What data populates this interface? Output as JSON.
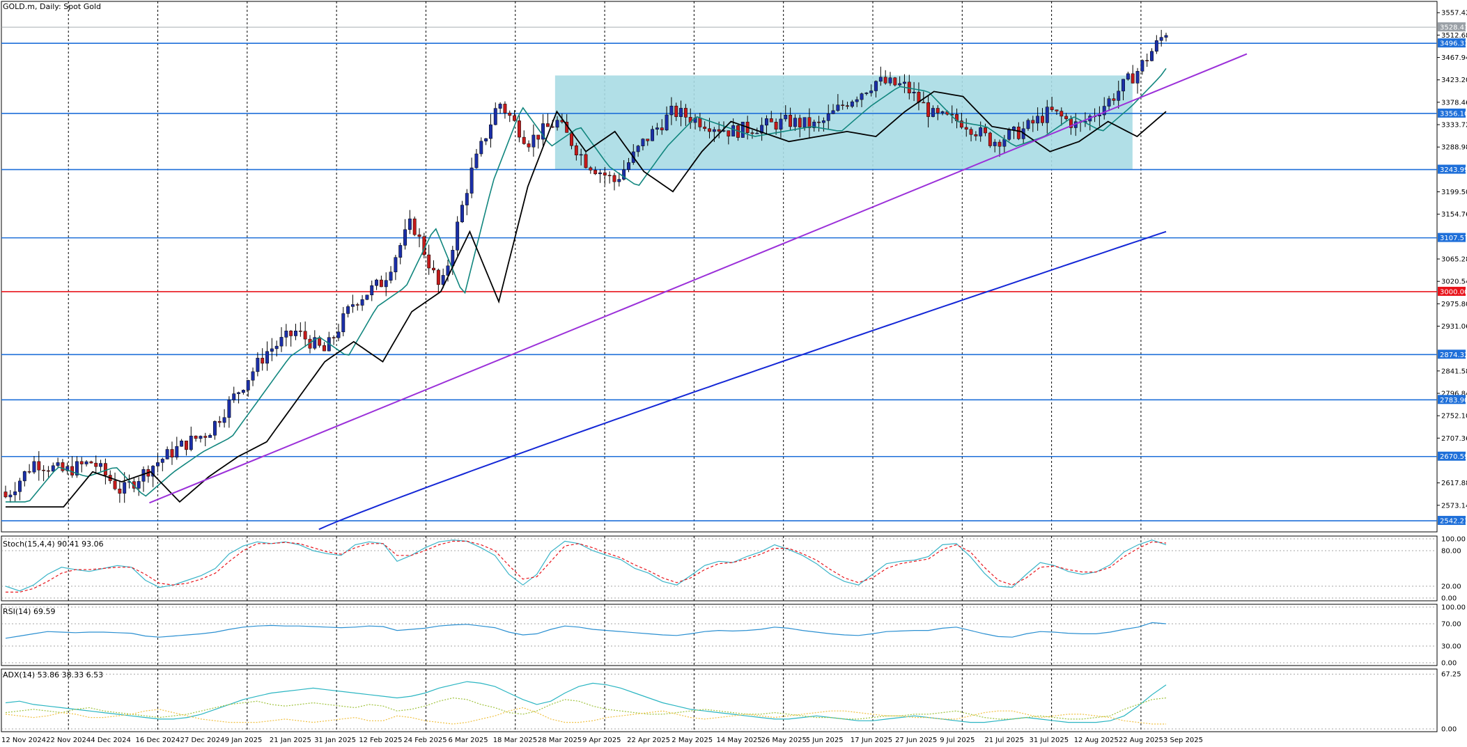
{
  "chart_data": [
    {
      "type": "candlestick",
      "title": "GOLD.m, Daily:  Spot Gold",
      "symbol": "GOLD.m",
      "timeframe": "Daily",
      "instrument": "Spot Gold",
      "ylim": [
        2520,
        3580
      ],
      "price_ticks": [
        "3557.42",
        "3512.68",
        "3467.94",
        "3423.20",
        "3378.46",
        "3333.72",
        "3288.98",
        "3199.50",
        "3154.76",
        "3065.28",
        "3020.54",
        "2975.80",
        "2931.06",
        "2841.58",
        "2796.84",
        "2752.10",
        "2707.36",
        "2617.88",
        "2573.14"
      ],
      "price_tick_values": [
        3557.42,
        3512.68,
        3467.94,
        3423.2,
        3378.46,
        3333.72,
        3288.98,
        3199.5,
        3154.76,
        3065.28,
        3020.54,
        2975.8,
        2931.06,
        2841.58,
        2796.84,
        2752.1,
        2707.36,
        2617.88,
        2573.14
      ],
      "dates": [
        "12 Nov 2024",
        "22 Nov 2024",
        "4 Dec 2024",
        "16 Dec 2024",
        "27 Dec 2024",
        "9 Jan 2025",
        "21 Jan 2025",
        "31 Jan 2025",
        "12 Feb 2025",
        "24 Feb 2025",
        "6 Mar 2025",
        "18 Mar 2025",
        "28 Mar 2025",
        "9 Apr 2025",
        "22 Apr 2025",
        "2 May 2025",
        "14 May 2025",
        "26 May 2025",
        "5 Jun 2025",
        "17 Jun 2025",
        "27 Jun 2025",
        "9 Jul 2025",
        "21 Jul 2025",
        "31 Jul 2025",
        "12 Aug 2025",
        "22 Aug 2025",
        "3 Sep 2025"
      ],
      "current_price": "3528.41",
      "horizontal_levels": [
        {
          "value": 3496.33,
          "label": "3496.33",
          "color": "#1e6fd9"
        },
        {
          "value": 3356.1,
          "label": "3356.10",
          "color": "#1e6fd9"
        },
        {
          "value": 3243.99,
          "label": "3243.99",
          "color": "#1e6fd9"
        },
        {
          "value": 3107.57,
          "label": "3107.57",
          "color": "#1e6fd9"
        },
        {
          "value": 3000.0,
          "label": "3000.00",
          "color": "#e8141b"
        },
        {
          "value": 2874.32,
          "label": "2874.32",
          "color": "#1e6fd9"
        },
        {
          "value": 2783.9,
          "label": "2783.90",
          "color": "#1e6fd9"
        },
        {
          "value": 2670.59,
          "label": "2670.59",
          "color": "#1e6fd9"
        },
        {
          "value": 2542.21,
          "label": "2542.21",
          "color": "#1e6fd9"
        }
      ],
      "range_box": {
        "start_date": "28 Mar 2025",
        "end_date": "22 Aug 2025",
        "high": 3432,
        "low": 3243.99,
        "color": "#a9dce4"
      },
      "trendline": {
        "color": "#9b30d9",
        "from": {
          "date": "16 Dec 2024",
          "price": 2578
        },
        "to": {
          "date": "3 Sep 2025",
          "price": 3475
        }
      },
      "colors": {
        "bull": "#1b2fa8",
        "bear": "#c41a1a",
        "ma_fast": "#11867e",
        "ma_mid": "#000000",
        "ma_slow": "#1427d6",
        "grid": "#000000"
      }
    },
    {
      "type": "line",
      "title": "Stoch(15,4,4) 90.41 93.06",
      "ylim": [
        0,
        100
      ],
      "levels": [
        "100.00",
        "80.00",
        "20.00",
        "0.00"
      ],
      "level_values": [
        100,
        80,
        20,
        0
      ],
      "series": [
        {
          "name": "main",
          "color": "#3ab4c8",
          "values": [
            20,
            12,
            22,
            40,
            52,
            48,
            45,
            50,
            55,
            52,
            30,
            18,
            22,
            30,
            38,
            50,
            75,
            88,
            95,
            92,
            95,
            90,
            80,
            75,
            72,
            90,
            95,
            92,
            62,
            72,
            85,
            95,
            98,
            96,
            85,
            72,
            40,
            22,
            40,
            78,
            96,
            92,
            80,
            72,
            65,
            50,
            42,
            28,
            22,
            38,
            55,
            62,
            60,
            70,
            78,
            90,
            82,
            72,
            58,
            40,
            28,
            22,
            40,
            58,
            62,
            64,
            70,
            90,
            92,
            70,
            42,
            20,
            18,
            40,
            60,
            55,
            45,
            40,
            44,
            56,
            78,
            90,
            98,
            90
          ]
        },
        {
          "name": "signal",
          "color": "#e8141b",
          "dashed": true,
          "values": [
            10,
            10,
            16,
            28,
            42,
            48,
            48,
            50,
            52,
            52,
            40,
            25,
            22,
            25,
            32,
            42,
            62,
            80,
            92,
            92,
            94,
            92,
            85,
            78,
            74,
            85,
            92,
            92,
            72,
            72,
            80,
            90,
            96,
            96,
            90,
            80,
            55,
            32,
            36,
            62,
            88,
            92,
            85,
            76,
            68,
            56,
            46,
            34,
            26,
            34,
            48,
            58,
            60,
            66,
            74,
            84,
            84,
            75,
            64,
            48,
            34,
            26,
            34,
            50,
            58,
            62,
            66,
            82,
            90,
            78,
            52,
            30,
            22,
            34,
            52,
            54,
            48,
            44,
            44,
            52,
            70,
            84,
            95,
            93
          ]
        }
      ]
    },
    {
      "type": "line",
      "title": "RSI(14) 69.59",
      "ylim": [
        0,
        100
      ],
      "levels": [
        "100.00",
        "70.00",
        "30.00",
        "0.00"
      ],
      "level_values": [
        100,
        70,
        30,
        0
      ],
      "series": [
        {
          "name": "RSI",
          "color": "#2a8fd1",
          "values": [
            44,
            48,
            52,
            56,
            55,
            54,
            55,
            55,
            54,
            53,
            48,
            46,
            48,
            50,
            52,
            55,
            60,
            64,
            66,
            67,
            66,
            66,
            65,
            64,
            63,
            64,
            66,
            65,
            58,
            60,
            62,
            66,
            68,
            69,
            66,
            63,
            55,
            50,
            52,
            60,
            66,
            64,
            60,
            58,
            56,
            54,
            52,
            50,
            49,
            52,
            56,
            58,
            57,
            58,
            60,
            64,
            62,
            58,
            55,
            52,
            50,
            49,
            52,
            56,
            57,
            58,
            58,
            62,
            64,
            58,
            52,
            47,
            46,
            52,
            56,
            55,
            53,
            52,
            52,
            55,
            60,
            64,
            72,
            70
          ]
        }
      ]
    },
    {
      "type": "line",
      "title": "ADX(14) 53.86 38.33 6.53",
      "ylim": [
        0,
        70
      ],
      "levels": [
        "67.25",
        "0.00"
      ],
      "level_values": [
        67.25,
        0
      ],
      "series": [
        {
          "name": "ADX",
          "color": "#2ab5c2",
          "values": [
            32,
            34,
            30,
            28,
            26,
            24,
            22,
            20,
            18,
            16,
            14,
            12,
            12,
            14,
            18,
            24,
            30,
            36,
            40,
            44,
            46,
            48,
            50,
            48,
            46,
            44,
            42,
            40,
            38,
            40,
            44,
            50,
            54,
            58,
            56,
            52,
            44,
            36,
            30,
            34,
            44,
            52,
            56,
            54,
            50,
            44,
            38,
            32,
            28,
            24,
            22,
            20,
            18,
            16,
            14,
            12,
            12,
            14,
            16,
            14,
            12,
            10,
            10,
            12,
            14,
            16,
            14,
            12,
            10,
            8,
            8,
            10,
            12,
            14,
            12,
            10,
            8,
            8,
            8,
            10,
            16,
            28,
            42,
            54
          ]
        },
        {
          "name": "+DI",
          "color": "#9fc23c",
          "dotted": true,
          "values": [
            20,
            22,
            24,
            22,
            20,
            24,
            26,
            22,
            20,
            18,
            16,
            14,
            16,
            18,
            22,
            26,
            30,
            32,
            34,
            30,
            28,
            30,
            32,
            30,
            28,
            26,
            30,
            28,
            22,
            24,
            28,
            34,
            38,
            36,
            30,
            26,
            20,
            18,
            22,
            30,
            36,
            34,
            28,
            24,
            22,
            20,
            18,
            18,
            20,
            22,
            24,
            22,
            20,
            18,
            18,
            20,
            18,
            16,
            14,
            14,
            12,
            12,
            14,
            16,
            16,
            18,
            18,
            20,
            22,
            18,
            14,
            12,
            12,
            14,
            16,
            14,
            12,
            12,
            14,
            16,
            24,
            30,
            36,
            38
          ]
        },
        {
          "name": "-DI",
          "color": "#f0c040",
          "dotted": true,
          "values": [
            18,
            16,
            14,
            16,
            20,
            18,
            14,
            14,
            16,
            18,
            22,
            24,
            20,
            16,
            12,
            10,
            8,
            8,
            8,
            10,
            12,
            10,
            8,
            10,
            12,
            14,
            10,
            10,
            16,
            14,
            10,
            8,
            6,
            8,
            12,
            16,
            22,
            26,
            20,
            12,
            8,
            8,
            10,
            14,
            16,
            18,
            20,
            22,
            18,
            14,
            12,
            14,
            16,
            18,
            16,
            14,
            16,
            18,
            20,
            22,
            22,
            20,
            18,
            16,
            16,
            14,
            14,
            12,
            12,
            16,
            20,
            22,
            22,
            18,
            14,
            16,
            18,
            18,
            16,
            14,
            10,
            8,
            6,
            6
          ]
        }
      ]
    }
  ]
}
